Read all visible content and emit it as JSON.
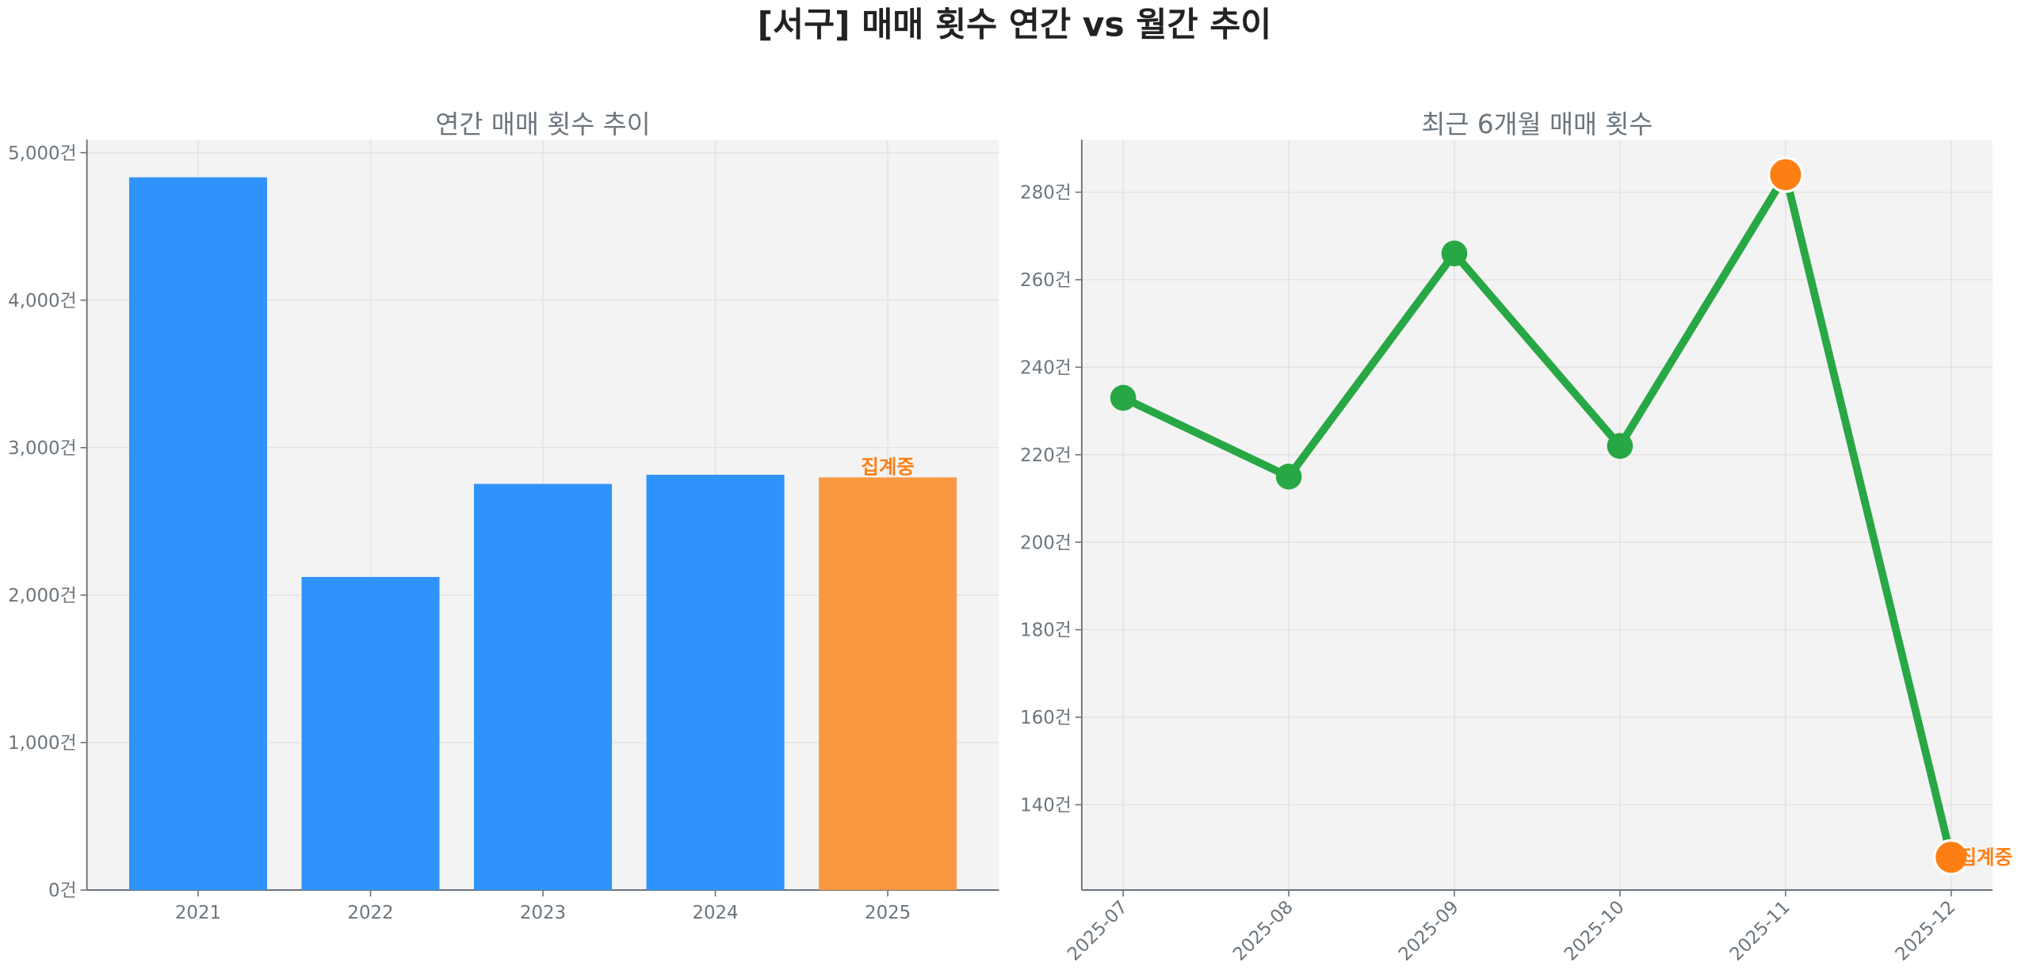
{
  "title": "[서구] 매매 횟수 연간 vs 월간 추이",
  "colors": {
    "bar": "#3093fc",
    "bar_current": "#fa9841",
    "line": "#28a745",
    "highlight": "#fd7f14",
    "annotation": "#fd7f14",
    "plot_bg": "#f3f3f3"
  },
  "chart_data": [
    {
      "type": "bar",
      "title": "연간 매매 횟수 추이",
      "categories": [
        "2021",
        "2022",
        "2023",
        "2024",
        "2025"
      ],
      "values": [
        4833,
        2123,
        2754,
        2816,
        2798
      ],
      "ylim": [
        0,
        5088
      ],
      "yticks": [
        0,
        1000,
        2000,
        3000,
        4000,
        5000
      ],
      "ytick_labels": [
        "0건",
        "1,000건",
        "2,000건",
        "3,000건",
        "4,000건",
        "5,000건"
      ],
      "annotations": [
        {
          "category": "2025",
          "text": "집계중"
        }
      ],
      "grid": true
    },
    {
      "type": "line",
      "title": "최근 6개월 매매 횟수",
      "categories": [
        "2025-07",
        "2025-08",
        "2025-09",
        "2025-10",
        "2025-11",
        "2025-12"
      ],
      "values": [
        233,
        215,
        266,
        222,
        284,
        128
      ],
      "highlight_points": [
        "2025-11",
        "2025-12"
      ],
      "ylim": [
        120.5,
        292
      ],
      "yticks": [
        140,
        160,
        180,
        200,
        220,
        240,
        260,
        280
      ],
      "ytick_labels": [
        "140건",
        "160건",
        "180건",
        "200건",
        "220건",
        "240건",
        "260건",
        "280건"
      ],
      "annotations": [
        {
          "category": "2025-12",
          "text": "집계중"
        }
      ],
      "grid": true
    }
  ]
}
